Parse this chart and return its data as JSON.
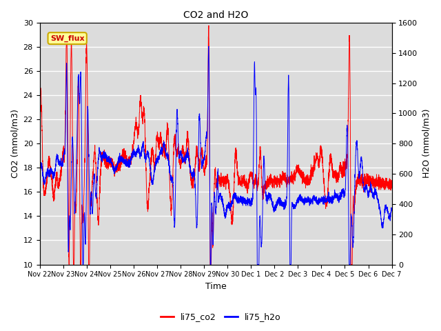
{
  "title": "CO2 and H2O",
  "xlabel": "Time",
  "ylabel_left": "CO2 (mmol/m3)",
  "ylabel_right": "H2O (mmol/m3)",
  "ylim_left": [
    10,
    30
  ],
  "ylim_right": [
    0,
    1600
  ],
  "yticks_left": [
    10,
    12,
    14,
    16,
    18,
    20,
    22,
    24,
    26,
    28,
    30
  ],
  "yticks_right": [
    0,
    200,
    400,
    600,
    800,
    1000,
    1200,
    1400,
    1600
  ],
  "co2_color": "#FF0000",
  "h2o_color": "#0000FF",
  "bg_color": "#DCDCDC",
  "annotation_text": "SW_flux",
  "annotation_bg": "#FFFF99",
  "annotation_border": "#CCAA00",
  "legend_co2": "li75_co2",
  "legend_h2o": "li75_h2o",
  "tick_labels": [
    "Nov 22",
    "Nov 23",
    "Nov 24",
    "Nov 25",
    "Nov 26",
    "Nov 27",
    "Nov 28",
    "Nov 29",
    "Nov 30",
    "Dec 1",
    "Dec 2",
    "Dec 3",
    "Dec 4",
    "Dec 5",
    "Dec 6",
    "Dec 7"
  ],
  "num_days": 16
}
